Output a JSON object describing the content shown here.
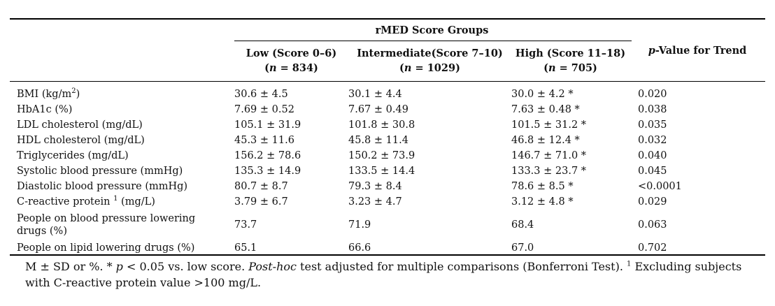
{
  "table": {
    "group_header": "rMED Score Groups",
    "columns": [
      {
        "title": "Low (Score 0–6)",
        "n_prefix": "(",
        "n_var": "n",
        "n_eq": " = 834)"
      },
      {
        "title": "Intermediate(Score 7–10)",
        "n_prefix": "(",
        "n_var": "n",
        "n_eq": " = 1029)"
      },
      {
        "title": "High (Score 11–18)",
        "n_prefix": "(",
        "n_var": "n",
        "n_eq": " = 705)"
      }
    ],
    "p_header_italic": "p",
    "p_header_rest": "-Value for Trend",
    "rows": [
      {
        "label": "BMI (kg/m",
        "label_sup": "2",
        "label_after": ")",
        "low": "30.6 ± 4.5",
        "mid": "30.1 ± 4.4",
        "high": "30.0 ± 4.2 *",
        "p": "0.020"
      },
      {
        "label": "HbA1c (%)",
        "label_sup": "",
        "label_after": "",
        "low": "7.69 ± 0.52",
        "mid": "7.67 ± 0.49",
        "high": "7.63 ± 0.48 *",
        "p": "0.038"
      },
      {
        "label": "LDL cholesterol (mg/dL)",
        "label_sup": "",
        "label_after": "",
        "low": "105.1 ± 31.9",
        "mid": "101.8 ± 30.8",
        "high": "101.5 ± 31.2 *",
        "p": "0.035"
      },
      {
        "label": "HDL cholesterol (mg/dL)",
        "label_sup": "",
        "label_after": "",
        "low": "45.3 ± 11.6",
        "mid": "45.8 ± 11.4",
        "high": "46.8 ± 12.4 *",
        "p": "0.032"
      },
      {
        "label": "Triglycerides (mg/dL)",
        "label_sup": "",
        "label_after": "",
        "low": "156.2 ± 78.6",
        "mid": "150.2 ± 73.9",
        "high": "146.7 ± 71.0 *",
        "p": "0.040"
      },
      {
        "label": "Systolic blood pressure (mmHg)",
        "label_sup": "",
        "label_after": "",
        "low": "135.3 ± 14.9",
        "mid": "133.5 ± 14.4",
        "high": "133.3 ± 23.7 *",
        "p": "0.045"
      },
      {
        "label": "Diastolic blood pressure (mmHg)",
        "label_sup": "",
        "label_after": "",
        "low": "80.7 ± 8.7",
        "mid": "79.3 ± 8.4",
        "high": "78.6 ± 8.5 *",
        "p": "<0.0001"
      },
      {
        "label": "C-reactive protein ",
        "label_sup": "1",
        "label_after": " (mg/L)",
        "low": "3.79 ± 6.7",
        "mid": "3.23 ± 4.7",
        "high": "3.12 ± 4.8 *",
        "p": "0.029"
      },
      {
        "label": "People on blood pressure lowering drugs (%)",
        "label_sup": "",
        "label_after": "",
        "low": "73.7",
        "mid": "71.9",
        "high": "68.4",
        "p": "0.063"
      },
      {
        "label": "People on lipid lowering drugs (%)",
        "label_sup": "",
        "label_after": "",
        "low": "65.1",
        "mid": "66.6",
        "high": "67.0",
        "p": "0.702"
      }
    ]
  },
  "footnote": {
    "part1": "M ± SD or %. * ",
    "p_italic": "p",
    "part2": " < 0.05 vs. low score. ",
    "posthoc_italic": "Post-hoc",
    "part3": " test adjusted for multiple comparisons (Bonferroni Test). ",
    "sup": "1",
    "part4": " Excluding subjects with C-reactive protein value >100 mg/L."
  }
}
